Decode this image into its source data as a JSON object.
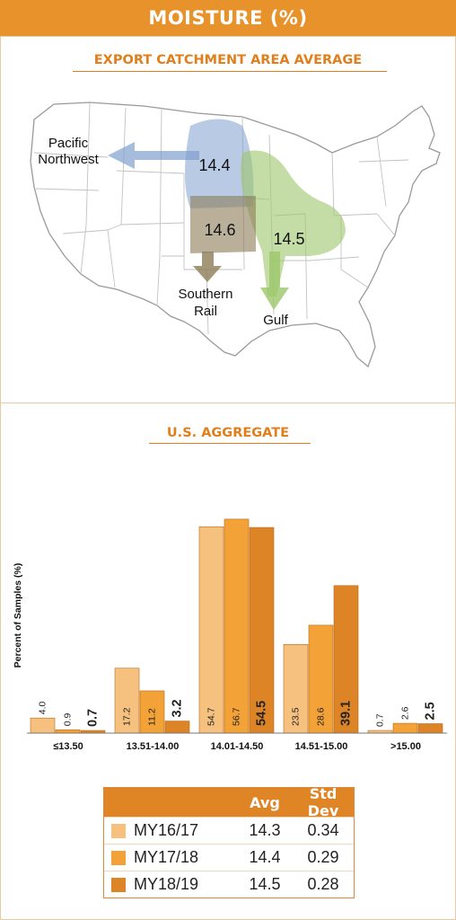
{
  "banner": {
    "title": "MOISTURE (%)"
  },
  "map": {
    "title": "EXPORT CATCHMENT AREA AVERAGE",
    "regions": [
      {
        "name": "Pacific Northwest",
        "line1": "Pacific",
        "line2": "Northwest",
        "value": "14.4",
        "color": "#7f9fcf"
      },
      {
        "name": "Southern Rail",
        "line1": "Southern",
        "line2": "Rail",
        "value": "14.6",
        "color": "#8c7c57"
      },
      {
        "name": "Gulf",
        "line1": "Gulf",
        "value": "14.5",
        "color": "#9cc76a"
      }
    ]
  },
  "chart_title": "U.S. AGGREGATE",
  "chart_data": {
    "type": "bar",
    "title": "U.S. AGGREGATE",
    "ylabel": "Percent of Samples (%)",
    "xlabel": "",
    "categories": [
      "≤13.50",
      "13.51-14.00",
      "14.01-14.50",
      "14.51-15.00",
      ">15.00"
    ],
    "ylim": [
      0,
      60
    ],
    "grid": false,
    "series": [
      {
        "name": "MY16/17",
        "color": "#f6c07f",
        "values": [
          4.0,
          17.2,
          54.7,
          23.5,
          0.7
        ],
        "labels": [
          "4.0",
          "17.2",
          "54.7",
          "23.5",
          "0.7"
        ]
      },
      {
        "name": "MY17/18",
        "color": "#f2a236",
        "values": [
          0.9,
          11.2,
          56.7,
          28.6,
          2.6
        ],
        "labels": [
          "0.9",
          "11.2",
          "56.7",
          "28.6",
          "2.6"
        ]
      },
      {
        "name": "MY18/19",
        "color": "#dd8526",
        "values": [
          0.7,
          3.2,
          54.5,
          39.1,
          2.5
        ],
        "labels": [
          "0.7",
          "3.2",
          "54.5",
          "39.1",
          "2.5"
        ]
      }
    ]
  },
  "stats": {
    "headers": {
      "label": "",
      "avg": "Avg",
      "sd": "Std Dev"
    },
    "rows": [
      {
        "label": "MY16/17",
        "avg": "14.3",
        "sd": "0.34",
        "color": "#f6c07f"
      },
      {
        "label": "MY17/18",
        "avg": "14.4",
        "sd": "0.29",
        "color": "#f2a236"
      },
      {
        "label": "MY18/19",
        "avg": "14.5",
        "sd": "0.28",
        "color": "#dd8526"
      }
    ]
  }
}
